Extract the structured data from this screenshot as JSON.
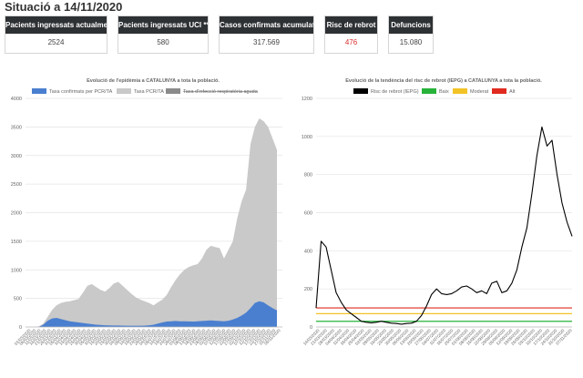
{
  "page": {
    "title": "Situació a 14/11/2020"
  },
  "cards": [
    {
      "label": "Pacients ingressats actualment",
      "value": "2524",
      "highlight": false
    },
    {
      "label": "Pacients ingressats UCI **",
      "value": "580",
      "highlight": false
    },
    {
      "label": "Casos confirmats acumulats",
      "value": "317.569",
      "highlight": false
    },
    {
      "label": "Risc de rebrot",
      "value": "476",
      "highlight": true
    },
    {
      "label": "Defuncions",
      "value": "15.080",
      "highlight": false
    }
  ],
  "colors": {
    "blue": "#4a7fd0",
    "gray": "#c9c9c9",
    "dark_gray": "#8a8a8a",
    "black": "#000000",
    "green": "#27b339",
    "yellow": "#f2c327",
    "red": "#e02a1f"
  },
  "chart_data": [
    {
      "type": "area",
      "title": "Evolució de l'epidèmia a CATALUNYA a tota la població.",
      "legend": [
        {
          "label": "Taxa confirmats per PCR/TA",
          "color": "#4a7fd0",
          "struck": false
        },
        {
          "label": "Taxa PCR/TA",
          "color": "#c9c9c9",
          "struck": false
        },
        {
          "label": "Taxa d'infecció respiratòria aguda",
          "color": "#8a8a8a",
          "struck": true
        }
      ],
      "ylim": [
        0,
        4000
      ],
      "yticks": [
        0,
        500,
        1000,
        1500,
        2000,
        2500,
        3000,
        3500,
        4000
      ],
      "xlabels": [
        "01/03/2020",
        "06/03/2020",
        "11/03/2020",
        "16/03/2020",
        "21/03/2020",
        "26/03/2020",
        "31/03/2020",
        "05/04/2020",
        "10/04/2020",
        "15/04/2020",
        "20/04/2020",
        "25/04/2020",
        "30/04/2020",
        "05/05/2020",
        "10/05/2020",
        "15/05/2020",
        "20/05/2020",
        "25/05/2020",
        "30/05/2020",
        "04/06/2020",
        "09/06/2020",
        "14/06/2020",
        "19/06/2020",
        "24/06/2020",
        "29/06/2020",
        "04/07/2020",
        "09/07/2020",
        "14/07/2020",
        "19/07/2020",
        "24/07/2020",
        "29/07/2020",
        "03/08/2020",
        "08/08/2020",
        "13/08/2020",
        "18/08/2020",
        "23/08/2020",
        "28/08/2020",
        "02/09/2020",
        "07/09/2020",
        "12/09/2020",
        "17/09/2020",
        "22/09/2020",
        "27/09/2020",
        "02/10/2020",
        "07/10/2020",
        "12/10/2020",
        "17/10/2020",
        "22/10/2020",
        "27/10/2020",
        "01/11/2020",
        "06/11/2020"
      ],
      "series": [
        {
          "name": "Taxa PCR/TA",
          "values": [
            0,
            0,
            10,
            60,
            180,
            300,
            380,
            420,
            440,
            450,
            470,
            490,
            600,
            720,
            750,
            700,
            650,
            620,
            680,
            760,
            790,
            720,
            650,
            580,
            520,
            480,
            450,
            420,
            380,
            430,
            480,
            560,
            700,
            820,
            920,
            1000,
            1050,
            1080,
            1100,
            1200,
            1350,
            1420,
            1400,
            1380,
            1200,
            1350,
            1500,
            1900,
            2200,
            2400,
            3200,
            3500,
            3650,
            3600,
            3500,
            3300,
            3100
          ]
        },
        {
          "name": "Taxa confirmats per PCR/TA",
          "values": [
            0,
            0,
            5,
            40,
            110,
            150,
            160,
            140,
            120,
            100,
            90,
            80,
            70,
            60,
            50,
            40,
            35,
            30,
            28,
            26,
            25,
            24,
            23,
            22,
            22,
            22,
            24,
            30,
            40,
            60,
            80,
            95,
            100,
            105,
            100,
            100,
            98,
            96,
            100,
            105,
            110,
            115,
            110,
            105,
            100,
            110,
            130,
            160,
            200,
            250,
            330,
            420,
            450,
            430,
            380,
            330,
            290
          ]
        }
      ]
    },
    {
      "type": "line",
      "title": "Evolució de la tendència del risc de rebrot (IEPG) a CATALUNYA a tota la població.",
      "legend": [
        {
          "label": "Risc de rebrot (IEPG)",
          "color": "#000000"
        },
        {
          "label": "Baix",
          "color": "#27b339"
        },
        {
          "label": "Moderat",
          "color": "#f2c327"
        },
        {
          "label": "Alt",
          "color": "#e02a1f"
        }
      ],
      "ylim": [
        0,
        1200
      ],
      "yticks": [
        0,
        200,
        400,
        600,
        800,
        1000,
        1200
      ],
      "thresholds": [
        {
          "name": "Alt",
          "value": 100
        },
        {
          "name": "Moderat",
          "value": 70
        },
        {
          "name": "Baix",
          "value": 30
        }
      ],
      "xlabels": [
        "14/03/2020",
        "21/03/2020",
        "28/03/2020",
        "04/04/2020",
        "11/04/2020",
        "18/04/2020",
        "25/04/2020",
        "02/05/2020",
        "09/05/2020",
        "16/05/2020",
        "23/05/2020",
        "30/05/2020",
        "06/06/2020",
        "13/06/2020",
        "20/06/2020",
        "27/06/2020",
        "04/07/2020",
        "11/07/2020",
        "18/07/2020",
        "25/07/2020",
        "01/08/2020",
        "08/08/2020",
        "15/08/2020",
        "22/08/2020",
        "29/08/2020",
        "05/09/2020",
        "12/09/2020",
        "19/09/2020",
        "26/09/2020",
        "03/10/2020",
        "10/10/2020",
        "17/10/2020",
        "24/10/2020",
        "31/10/2020",
        "07/11/2020"
      ],
      "series": [
        {
          "name": "Risc de rebrot (IEPG)",
          "values": [
            100,
            450,
            420,
            300,
            180,
            130,
            90,
            70,
            50,
            30,
            25,
            22,
            25,
            30,
            25,
            20,
            18,
            15,
            18,
            20,
            30,
            60,
            110,
            170,
            200,
            175,
            170,
            175,
            190,
            210,
            215,
            200,
            180,
            190,
            175,
            230,
            240,
            180,
            190,
            230,
            300,
            420,
            520,
            700,
            900,
            1050,
            950,
            980,
            800,
            650,
            550,
            476
          ]
        }
      ]
    }
  ]
}
